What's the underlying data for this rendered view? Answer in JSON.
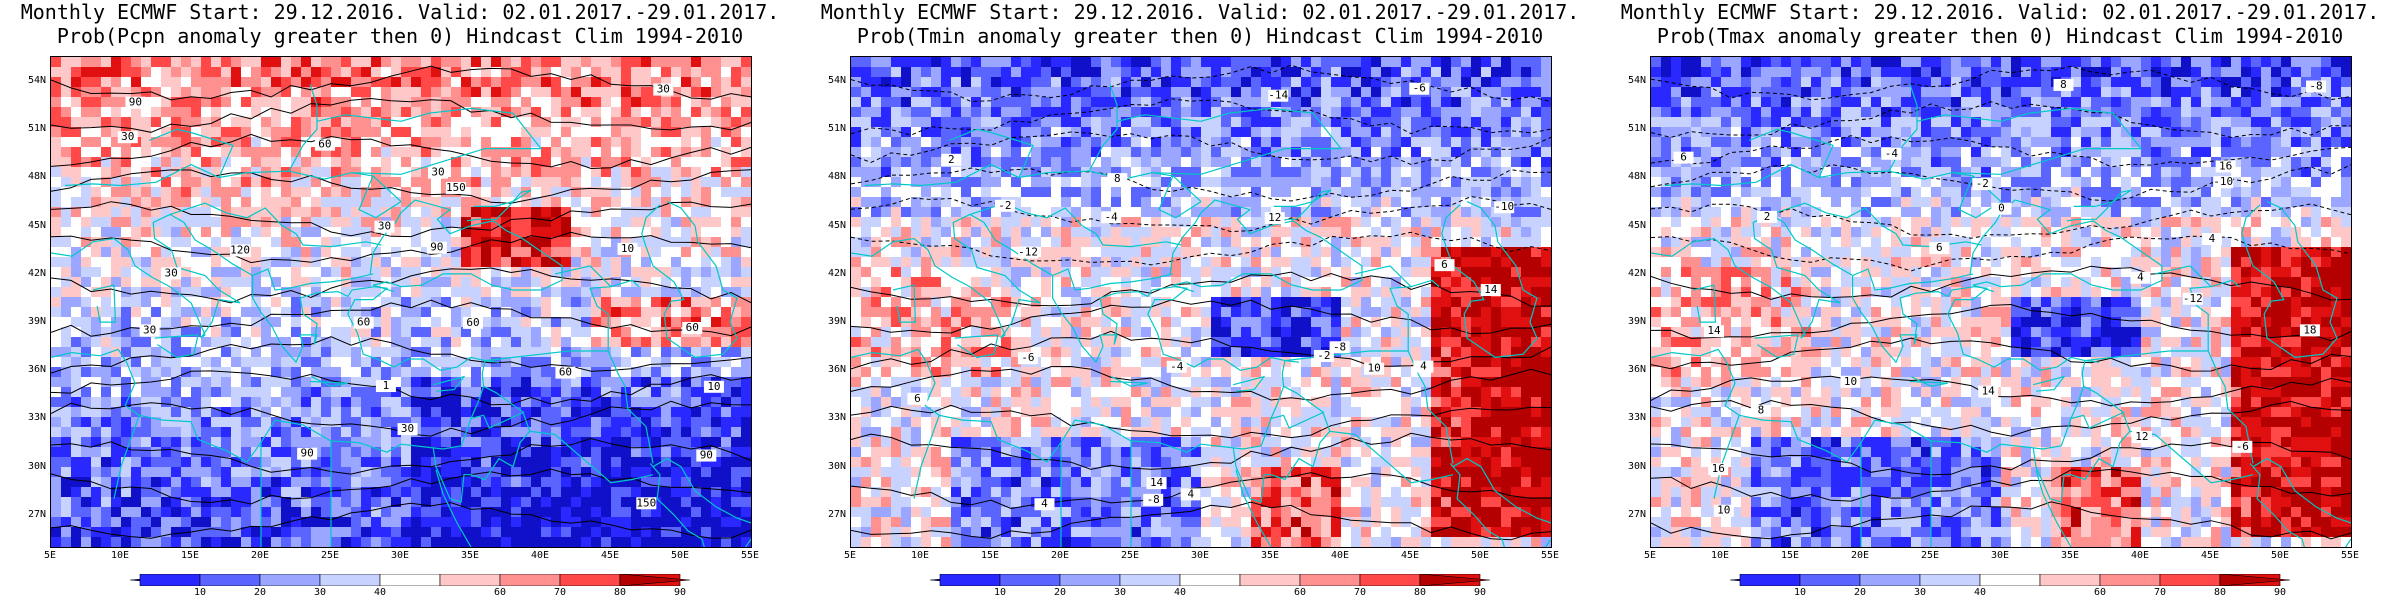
{
  "panels": [
    {
      "title_line1": "Monthly ECMWF Start: 29.12.2016. Valid: 02.01.2017.-29.01.2017.",
      "title_line2": "Prob(Pcpn anomaly greater then 0) Hindcast Clim 1994-2010",
      "variable": "Pcpn",
      "seed": 7,
      "bias": "wet-north-dry-south",
      "contour_labels": [
        "60",
        "60",
        "60",
        "90",
        "90",
        "120",
        "150",
        "90",
        "90",
        "60",
        "30",
        "30",
        "30",
        "10",
        "30",
        "1",
        "30",
        "30",
        "10",
        "150",
        "30",
        "60"
      ]
    },
    {
      "title_line1": "Monthly ECMWF Start: 29.12.2016. Valid: 02.01.2017.-29.01.2017.",
      "title_line2": "Prob(Tmin anomaly greater then 0) Hindcast Clim 1994-2010",
      "variable": "Tmin",
      "seed": 19,
      "bias": "cold-north-warm-east",
      "contour_labels": [
        "-14",
        "-12",
        "-10",
        "-8",
        "-6",
        "-4",
        "-2",
        "2",
        "4",
        "6",
        "8",
        "10",
        "12",
        "14",
        "-4",
        "-6",
        "-2",
        "4",
        "6",
        "-8",
        "4",
        "14"
      ]
    },
    {
      "title_line1": "Monthly ECMWF Start: 29.12.2016. Valid: 02.01.2017.-29.01.2017.",
      "title_line2": "Prob(Tmax anomaly greater then 0) Hindcast Clim 1994-2010",
      "variable": "Tmax",
      "seed": 31,
      "bias": "cold-north-warm-east",
      "contour_labels": [
        "-12",
        "-10",
        "-8",
        "-6",
        "-4",
        "-2",
        "0",
        "2",
        "4",
        "6",
        "8",
        "10",
        "12",
        "14",
        "16",
        "18",
        "4",
        "6",
        "8",
        "10",
        "16",
        "14"
      ]
    }
  ],
  "axes": {
    "lat_labels": [
      "54N",
      "51N",
      "48N",
      "45N",
      "42N",
      "39N",
      "36N",
      "33N",
      "30N",
      "27N"
    ],
    "lat_values": [
      54,
      51,
      48,
      45,
      42,
      39,
      36,
      33,
      30,
      27
    ],
    "lon_labels": [
      "5E",
      "10E",
      "15E",
      "20E",
      "25E",
      "30E",
      "35E",
      "40E",
      "45E",
      "50E",
      "55E"
    ],
    "lon_values": [
      5,
      10,
      15,
      20,
      25,
      30,
      35,
      40,
      45,
      50,
      55
    ],
    "lon_range": [
      5,
      55
    ],
    "lat_range": [
      25,
      55.5
    ]
  },
  "colorbar": {
    "labels": [
      "10",
      "20",
      "30",
      "40",
      "60",
      "70",
      "80",
      "90"
    ],
    "colors": [
      "#1010c8",
      "#2828ff",
      "#5a64ff",
      "#9aa6ff",
      "#c8d2ff",
      "#ffffff",
      "#ffc8c8",
      "#ff9090",
      "#ff4848",
      "#e01010",
      "#b40000"
    ]
  },
  "colors": {
    "coastline": "#00c8c8",
    "contour": "#000000"
  }
}
